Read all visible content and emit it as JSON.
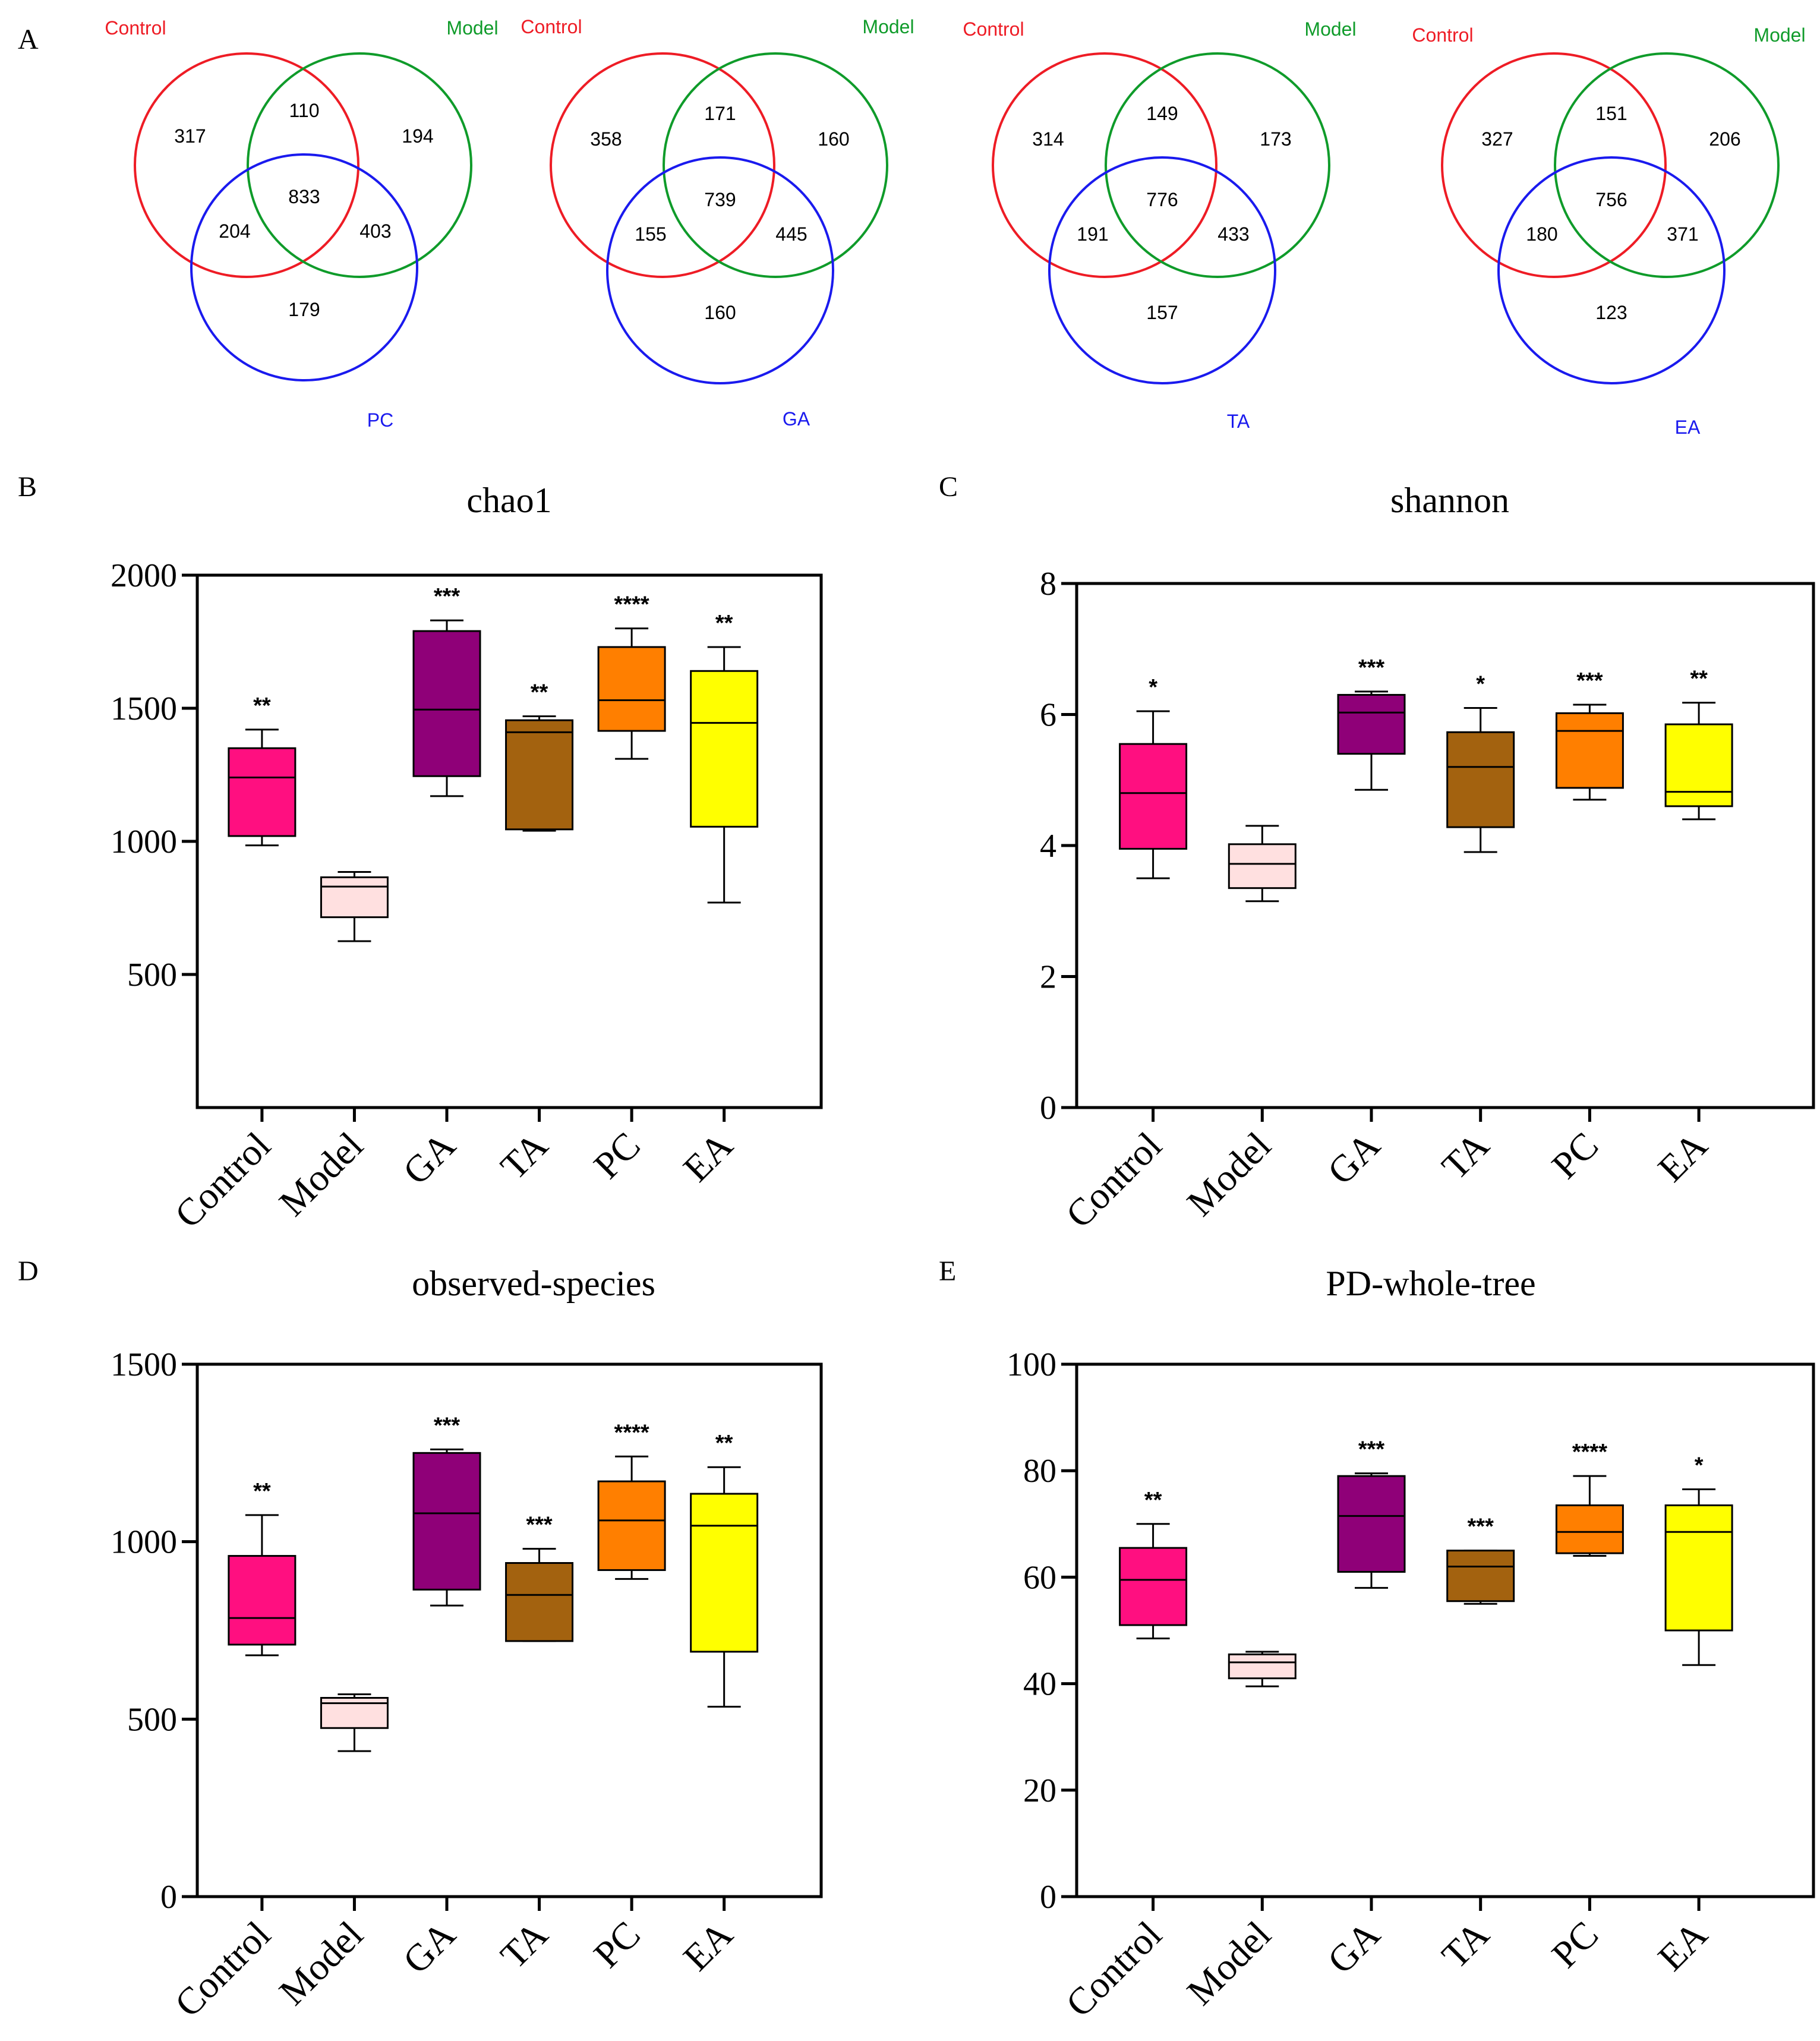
{
  "panel_letters": {
    "a": "A",
    "b": "B",
    "c": "C",
    "d": "D",
    "e": "E"
  },
  "venn": [
    {
      "set_a": "Control",
      "set_b": "Model",
      "set_c": "PC",
      "regions": {
        "a_only": "317",
        "ab": "110",
        "b_only": "194",
        "abc": "833",
        "ac": "204",
        "bc": "403",
        "c_only": "179"
      }
    },
    {
      "set_a": "Control",
      "set_b": "Model",
      "set_c": "GA",
      "regions": {
        "a_only": "358",
        "ab": "171",
        "b_only": "160",
        "abc": "739",
        "ac": "155",
        "bc": "445",
        "c_only": "160"
      }
    },
    {
      "set_a": "Control",
      "set_b": "Model",
      "set_c": "TA",
      "regions": {
        "a_only": "314",
        "ab": "149",
        "b_only": "173",
        "abc": "776",
        "ac": "191",
        "bc": "433",
        "c_only": "157"
      }
    },
    {
      "set_a": "Control",
      "set_b": "Model",
      "set_c": "EA",
      "regions": {
        "a_only": "327",
        "ab": "151",
        "b_only": "206",
        "abc": "756",
        "ac": "180",
        "bc": "371",
        "c_only": "123"
      }
    }
  ],
  "colors": {
    "venn_a": "#ee1c25",
    "venn_b": "#0f9b2a",
    "venn_c": "#1a1aee",
    "Control": "#ff0f80",
    "Model": "#ffe0e0",
    "GA": "#8f0078",
    "TA": "#a3620f",
    "PC": "#ff7f00",
    "EA": "#ffff00"
  },
  "chart_data": [
    {
      "type": "box",
      "title": "chao1",
      "ylim": [
        0,
        2000
      ],
      "yticks": [
        "500",
        "1000",
        "1500",
        "2000"
      ],
      "categories": [
        "Control",
        "Model",
        "GA",
        "TA",
        "PC",
        "EA"
      ],
      "boxes": [
        {
          "min": 985,
          "q1": 1020,
          "median": 1240,
          "q3": 1350,
          "max": 1420,
          "sig": "**"
        },
        {
          "min": 625,
          "q1": 715,
          "median": 830,
          "q3": 865,
          "max": 885,
          "sig": ""
        },
        {
          "min": 1170,
          "q1": 1245,
          "median": 1495,
          "q3": 1790,
          "max": 1830,
          "sig": "***"
        },
        {
          "min": 1040,
          "q1": 1045,
          "median": 1410,
          "q3": 1455,
          "max": 1470,
          "sig": "**"
        },
        {
          "min": 1310,
          "q1": 1415,
          "median": 1530,
          "q3": 1730,
          "max": 1800,
          "sig": "****"
        },
        {
          "min": 770,
          "q1": 1055,
          "median": 1445,
          "q3": 1640,
          "max": 1730,
          "sig": "**"
        }
      ]
    },
    {
      "type": "box",
      "title": "shannon",
      "ylim": [
        0,
        8
      ],
      "yticks": [
        "0",
        "2",
        "4",
        "6",
        "8"
      ],
      "categories": [
        "Control",
        "Model",
        "GA",
        "TA",
        "PC",
        "EA"
      ],
      "boxes": [
        {
          "min": 3.5,
          "q1": 3.95,
          "median": 4.8,
          "q3": 5.55,
          "max": 6.05,
          "sig": "*"
        },
        {
          "min": 3.15,
          "q1": 3.35,
          "median": 3.72,
          "q3": 4.02,
          "max": 4.3,
          "sig": ""
        },
        {
          "min": 4.85,
          "q1": 5.4,
          "median": 6.03,
          "q3": 6.3,
          "max": 6.35,
          "sig": "***"
        },
        {
          "min": 3.9,
          "q1": 4.28,
          "median": 5.2,
          "q3": 5.73,
          "max": 6.1,
          "sig": "*"
        },
        {
          "min": 4.7,
          "q1": 4.88,
          "median": 5.75,
          "q3": 6.02,
          "max": 6.15,
          "sig": "***"
        },
        {
          "min": 4.4,
          "q1": 4.6,
          "median": 4.82,
          "q3": 5.85,
          "max": 6.18,
          "sig": "**"
        }
      ]
    },
    {
      "type": "box",
      "title": "observed-species",
      "ylim": [
        0,
        1500
      ],
      "yticks": [
        "0",
        "500",
        "1000",
        "1500"
      ],
      "categories": [
        "Control",
        "Model",
        "GA",
        "TA",
        "PC",
        "EA"
      ],
      "boxes": [
        {
          "min": 680,
          "q1": 710,
          "median": 785,
          "q3": 960,
          "max": 1075,
          "sig": "**"
        },
        {
          "min": 410,
          "q1": 475,
          "median": 545,
          "q3": 560,
          "max": 570,
          "sig": ""
        },
        {
          "min": 820,
          "q1": 865,
          "median": 1080,
          "q3": 1250,
          "max": 1260,
          "sig": "***"
        },
        {
          "min": 720,
          "q1": 720,
          "median": 850,
          "q3": 940,
          "max": 980,
          "sig": "***"
        },
        {
          "min": 895,
          "q1": 920,
          "median": 1060,
          "q3": 1170,
          "max": 1240,
          "sig": "****"
        },
        {
          "min": 535,
          "q1": 690,
          "median": 1045,
          "q3": 1135,
          "max": 1210,
          "sig": "**"
        }
      ]
    },
    {
      "type": "box",
      "title": "PD-whole-tree",
      "ylim": [
        0,
        100
      ],
      "yticks": [
        "0",
        "20",
        "40",
        "60",
        "80",
        "100"
      ],
      "categories": [
        "Control",
        "Model",
        "GA",
        "TA",
        "PC",
        "EA"
      ],
      "boxes": [
        {
          "min": 48.5,
          "q1": 51,
          "median": 59.5,
          "q3": 65.5,
          "max": 70,
          "sig": "**"
        },
        {
          "min": 39.5,
          "q1": 41,
          "median": 44,
          "q3": 45.5,
          "max": 46,
          "sig": ""
        },
        {
          "min": 58,
          "q1": 61,
          "median": 71.5,
          "q3": 79,
          "max": 79.5,
          "sig": "***"
        },
        {
          "min": 55,
          "q1": 55.5,
          "median": 62,
          "q3": 65,
          "max": 65,
          "sig": "***"
        },
        {
          "min": 64,
          "q1": 64.5,
          "median": 68.5,
          "q3": 73.5,
          "max": 79,
          "sig": "****"
        },
        {
          "min": 43.5,
          "q1": 50,
          "median": 68.5,
          "q3": 73.5,
          "max": 76.5,
          "sig": "*"
        }
      ]
    }
  ]
}
